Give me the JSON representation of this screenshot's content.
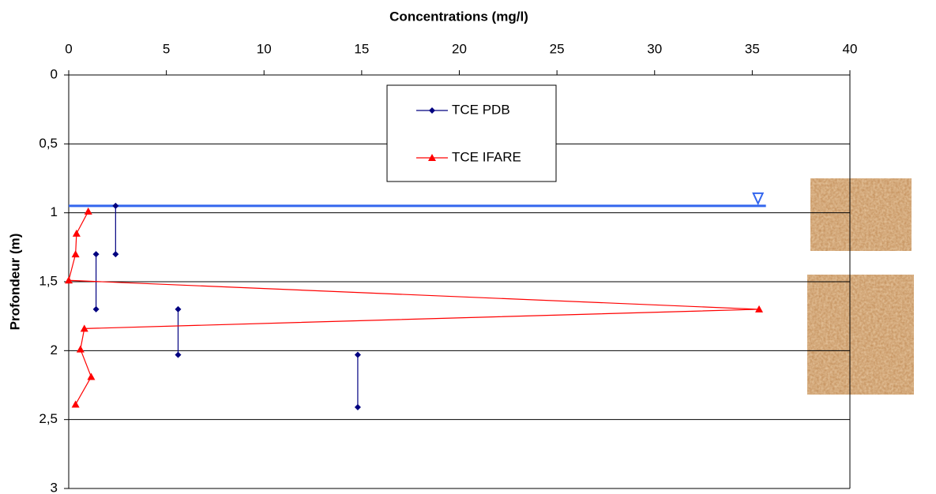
{
  "chart_data": {
    "type": "line",
    "title": "Concentrations (mg/l)",
    "y_label": "Profondeur (m)",
    "xlim": [
      0,
      40
    ],
    "xticks": [
      0,
      5,
      10,
      15,
      20,
      25,
      30,
      35,
      40
    ],
    "ylim": [
      0,
      3
    ],
    "yticks": [
      0,
      {
        "value": 0.5,
        "label": "0,5"
      },
      1,
      {
        "value": 1.5,
        "label": "1,5"
      },
      2,
      {
        "value": 2.5,
        "label": "2,5"
      },
      3
    ],
    "y_inverted": true,
    "grid": true,
    "series": [
      {
        "name": "TCE PDB",
        "color": "#000080",
        "marker": "diamond",
        "x": [
          2.4,
          2.4,
          null,
          1.4,
          1.4,
          null,
          5.6,
          5.6,
          null,
          14.8,
          14.8
        ],
        "values": [
          0.95,
          1.3,
          null,
          1.3,
          1.7,
          null,
          1.7,
          2.03,
          null,
          2.03,
          2.41
        ]
      },
      {
        "name": "TCE IFARE",
        "color": "#ff0000",
        "marker": "triangle",
        "x": [
          1.0,
          0.4,
          0.35,
          0,
          35.35,
          0.8,
          0.6,
          1.15,
          0.35
        ],
        "values": [
          0.99,
          1.15,
          1.3,
          1.49,
          1.7,
          1.84,
          1.99,
          2.19,
          2.39
        ]
      }
    ],
    "water_table": {
      "depth": 0.95,
      "x": [
        0,
        35.7
      ],
      "color": "#3366ee"
    }
  }
}
